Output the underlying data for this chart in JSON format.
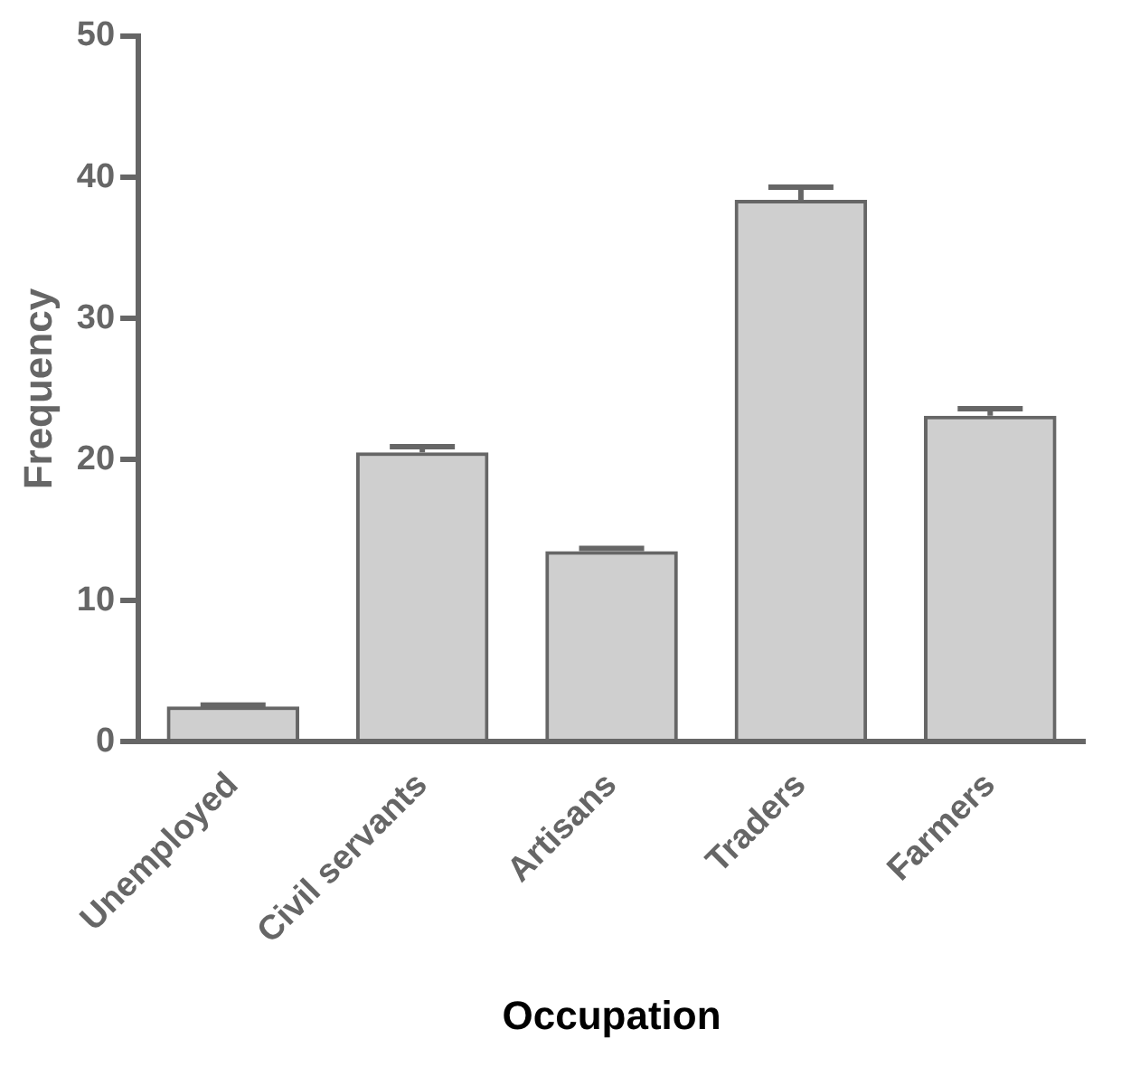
{
  "chart_data": {
    "type": "bar",
    "xlabel": "Occupation",
    "ylabel": "Frequency",
    "categories": [
      "Unemployed",
      "Civil servants",
      "Artisans",
      "Traders",
      "Farmers"
    ],
    "values": [
      2.5,
      20.5,
      13.5,
      38.4,
      23.1
    ],
    "errors": [
      [
        2.5,
        2.6
      ],
      [
        20.5,
        20.9
      ],
      [
        13.5,
        13.7
      ],
      [
        38.4,
        39.3
      ],
      [
        23.1,
        23.6
      ]
    ],
    "color": "#666666",
    "ylim": [
      0,
      50
    ],
    "yticks": [
      0,
      10,
      20,
      30,
      40,
      50
    ],
    "grid": false,
    "legend": false
  }
}
